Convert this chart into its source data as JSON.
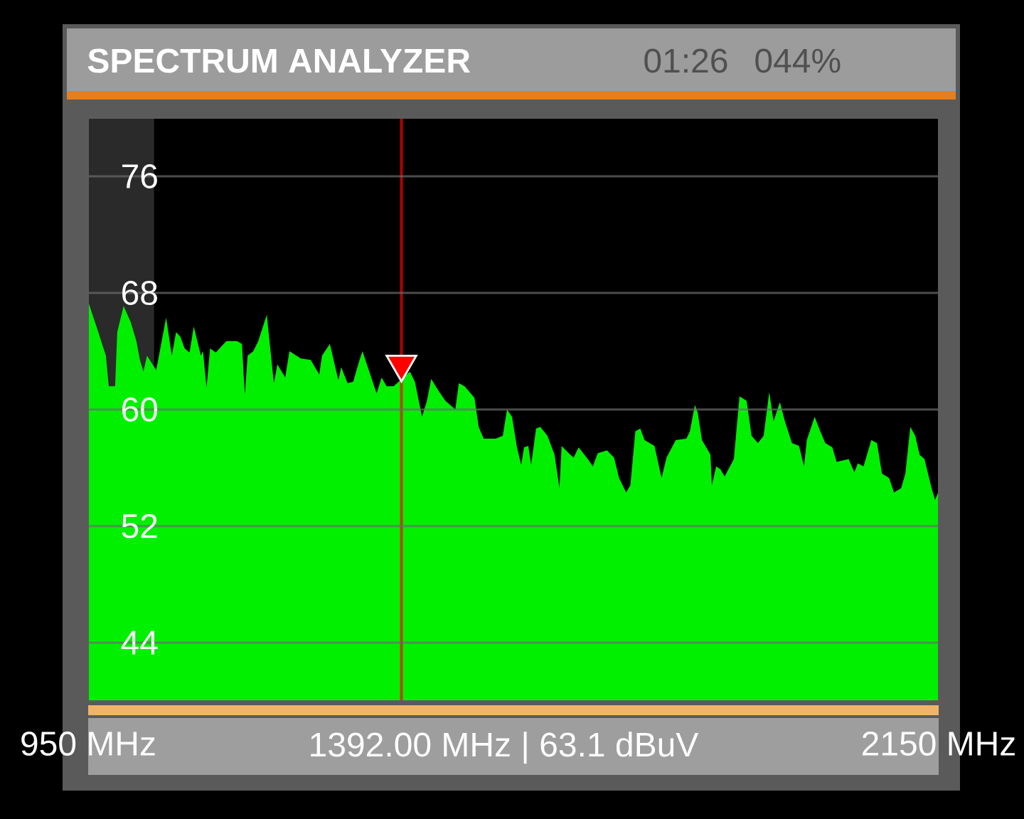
{
  "chart_data": {
    "type": "area",
    "title": "SPECTRUM ANALYZER",
    "annotations": [
      "01:26",
      "044%",
      "1392.00 MHz | 63.1 dBuV"
    ],
    "xlim": [
      950,
      2150
    ],
    "xticks": [
      {
        "value": 950,
        "label": "950 MHz"
      },
      {
        "value": 2150,
        "label": "2150 MHz"
      }
    ],
    "ylim": [
      40,
      80
    ],
    "yticks": [
      44,
      52,
      60,
      68,
      76
    ],
    "grid": "y",
    "series": [
      {
        "color": "#00f000",
        "x": [
          950,
          963,
          975,
          979,
          988,
          991,
          1000,
          1010,
          1018,
          1023,
          1028,
          1033,
          1046,
          1060,
          1068,
          1074,
          1080,
          1086,
          1093,
          1099,
          1109,
          1112,
          1117,
          1122,
          1130,
          1145,
          1160,
          1167,
          1171,
          1175,
          1183,
          1190,
          1202,
          1212,
          1217,
          1228,
          1234,
          1250,
          1264,
          1276,
          1280,
          1291,
          1303,
          1307,
          1316,
          1324,
          1331,
          1337,
          1357,
          1364,
          1371,
          1381,
          1404,
          1411,
          1421,
          1428,
          1434,
          1444,
          1454,
          1468,
          1473,
          1481,
          1495,
          1501,
          1508,
          1525,
          1535,
          1541,
          1548,
          1555,
          1561,
          1565,
          1571,
          1575,
          1582,
          1588,
          1598,
          1608,
          1615,
          1618,
          1628,
          1635,
          1642,
          1655,
          1662,
          1669,
          1682,
          1692,
          1699,
          1709,
          1715,
          1722,
          1729,
          1735,
          1749,
          1759,
          1766,
          1779,
          1794,
          1799,
          1806,
          1810,
          1816,
          1822,
          1828,
          1830,
          1836,
          1842,
          1848,
          1861,
          1869,
          1879,
          1886,
          1895,
          1903,
          1911,
          1917,
          1926,
          1933,
          1943,
          1953,
          1960,
          1964,
          1975,
          1983,
          1990,
          2000,
          2006,
          2023,
          2031,
          2036,
          2044,
          2055,
          2063,
          2070,
          2080,
          2087,
          2097,
          2103,
          2110,
          2117,
          2123,
          2130,
          2140,
          2145,
          2150
        ],
        "values": [
          67.4,
          65.5,
          63.7,
          61.6,
          61.6,
          65.3,
          67.1,
          66.0,
          64.7,
          63.4,
          62.6,
          63.7,
          62.7,
          66.3,
          63.7,
          65.3,
          65.0,
          64.2,
          63.9,
          65.7,
          63.7,
          64.0,
          61.5,
          64.2,
          63.9,
          64.7,
          64.7,
          64.5,
          61.0,
          63.7,
          64.0,
          64.7,
          66.5,
          61.8,
          63.1,
          62.2,
          64.0,
          63.5,
          63.4,
          62.4,
          63.7,
          64.5,
          62.0,
          62.9,
          61.8,
          61.9,
          63.1,
          64.0,
          61.1,
          62.2,
          61.6,
          61.6,
          62.6,
          61.9,
          59.5,
          60.6,
          62.1,
          61.3,
          60.6,
          60.0,
          61.8,
          61.6,
          60.8,
          58.8,
          58.0,
          58.0,
          58.2,
          60.0,
          59.5,
          57.4,
          56.2,
          57.4,
          57.5,
          56.2,
          58.7,
          58.8,
          58.2,
          56.9,
          54.6,
          57.5,
          57.0,
          56.7,
          57.4,
          56.6,
          56.1,
          57.0,
          57.2,
          56.7,
          55.3,
          54.3,
          54.8,
          58.5,
          58.7,
          57.9,
          57.5,
          55.3,
          56.7,
          57.9,
          58.0,
          58.5,
          60.3,
          59.8,
          57.9,
          57.4,
          56.9,
          54.8,
          56.1,
          55.9,
          55.4,
          56.6,
          60.9,
          60.6,
          58.2,
          57.7,
          58.2,
          61.2,
          59.2,
          60.5,
          59.2,
          57.7,
          57.5,
          56.1,
          57.9,
          59.5,
          58.5,
          57.7,
          57.4,
          56.4,
          56.6,
          55.7,
          56.3,
          56.1,
          57.9,
          57.7,
          55.6,
          55.3,
          54.3,
          54.6,
          55.6,
          58.8,
          58.2,
          56.9,
          56.6,
          54.6,
          53.8,
          54.4
        ]
      },
      {
        "type": "scatter",
        "color": "#ff0000",
        "marker": "triangle",
        "x": [
          1392
        ],
        "values": [
          63.1
        ]
      }
    ],
    "ref_lines": [
      {
        "axis": "x",
        "value": 1392,
        "color": "#ff0000"
      }
    ],
    "bands": [
      {
        "axis": "x",
        "from": 950,
        "to": 1043,
        "color": "#2a2a2a"
      }
    ]
  }
}
